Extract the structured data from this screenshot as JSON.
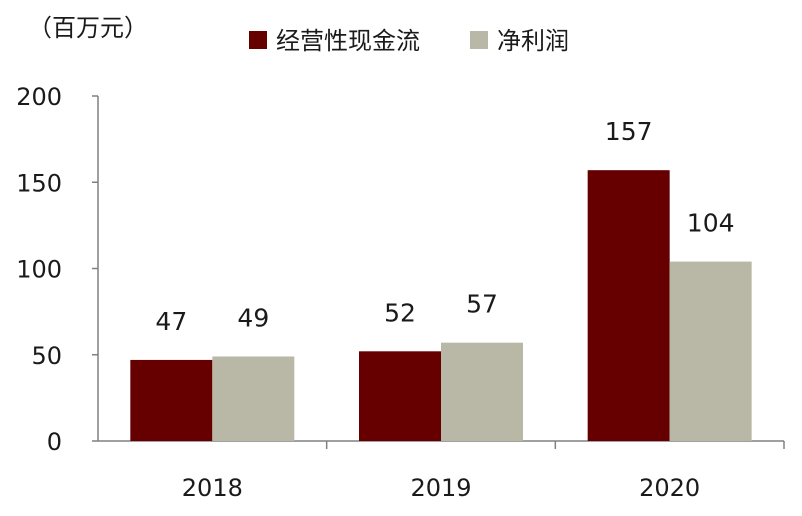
{
  "chart_data": {
    "type": "bar",
    "unit_label": "（百万元）",
    "categories": [
      "2018",
      "2019",
      "2020"
    ],
    "series": [
      {
        "name": "经营性现金流",
        "color": "#660000",
        "values": [
          47,
          52,
          157
        ]
      },
      {
        "name": "净利润",
        "color": "#b9b8a6",
        "values": [
          49,
          57,
          104
        ]
      }
    ],
    "y_ticks": [
      "0",
      "50",
      "100",
      "150",
      "200"
    ],
    "ylim": [
      0,
      200
    ],
    "data_labels": [
      [
        "47",
        "52",
        "157"
      ],
      [
        "49",
        "57",
        "104"
      ]
    ],
    "legend_position": "top",
    "grid": false
  }
}
